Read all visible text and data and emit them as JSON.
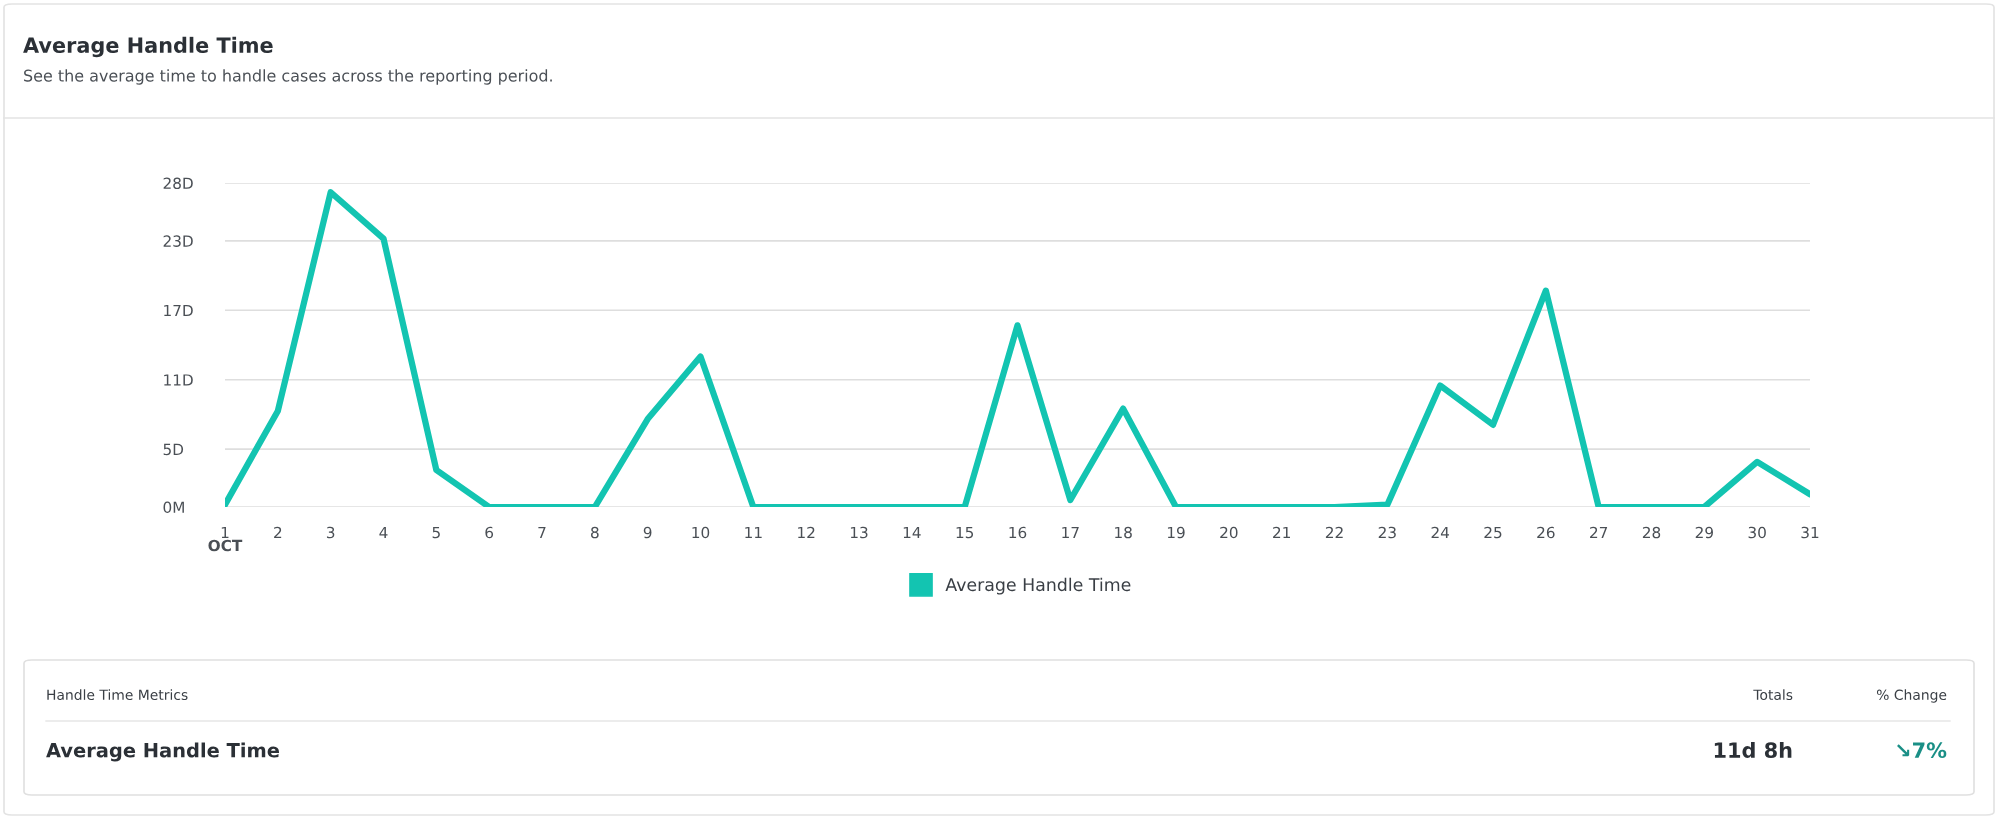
{
  "chart_data": {
    "type": "line",
    "title": "Average Handle Time",
    "subtitle": "See the average time to handle cases across the reporting period.",
    "xlabel": "OCT",
    "categories": [
      "1",
      "2",
      "3",
      "4",
      "5",
      "6",
      "7",
      "8",
      "9",
      "10",
      "11",
      "12",
      "13",
      "14",
      "15",
      "16",
      "17",
      "18",
      "19",
      "20",
      "21",
      "22",
      "23",
      "24",
      "25",
      "26",
      "27",
      "28",
      "29",
      "30",
      "31"
    ],
    "series": [
      {
        "name": "Average Handle Time",
        "color": "#13c4b1",
        "values": [
          0.2,
          8.3,
          27.2,
          23.2,
          3.2,
          0,
          0,
          0,
          7.6,
          13.0,
          0,
          0,
          0,
          0,
          0,
          15.7,
          0.6,
          8.5,
          0,
          0,
          0,
          0,
          0.2,
          10.5,
          7.1,
          18.7,
          0,
          0,
          0,
          3.9,
          1.1
        ]
      }
    ],
    "ylim": [
      0,
      28
    ],
    "yticks": [
      {
        "value": 0,
        "label": "0M"
      },
      {
        "value": 5,
        "label": "5D"
      },
      {
        "value": 11,
        "label": "11D"
      },
      {
        "value": 17,
        "label": "17D"
      },
      {
        "value": 23,
        "label": "23D"
      },
      {
        "value": 28,
        "label": "28D"
      }
    ],
    "grid": "y",
    "legend": "bottom",
    "marker": "none",
    "line_style": "solid",
    "annotations": [
      "Handle Time Metrics",
      "Totals",
      "% Change",
      "Average Handle Time",
      "11d 8h",
      "↘7%"
    ]
  }
}
